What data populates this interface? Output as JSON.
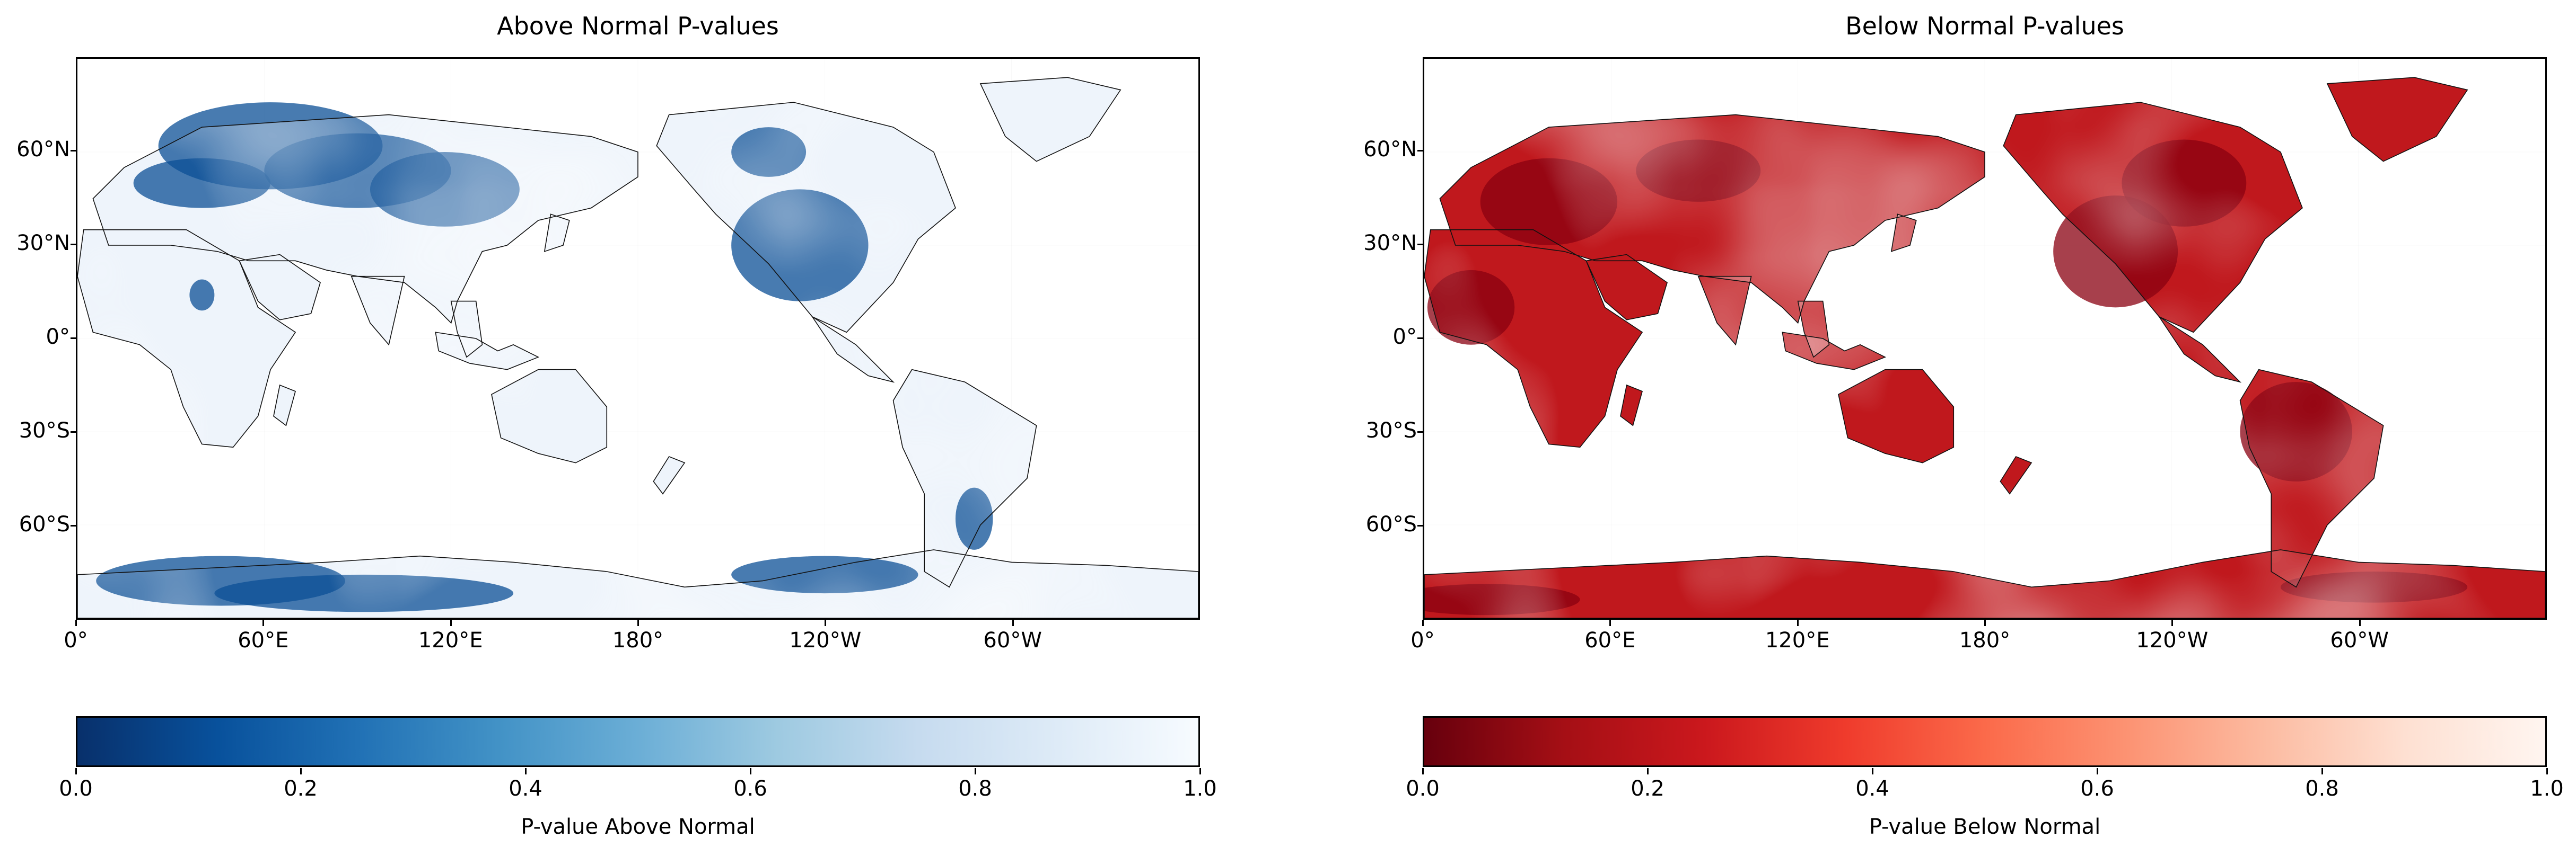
{
  "panels": [
    {
      "title": "Above Normal P-values",
      "colorbar_label": "P-value Above Normal",
      "colormap": "Blues_r",
      "colormap_stops": [
        "#08306b",
        "#08519c",
        "#2171b5",
        "#4292c6",
        "#6baed6",
        "#9ecae1",
        "#c6dbef",
        "#deebf7",
        "#f7fbff"
      ],
      "land_color": "#eef4fb",
      "hotspot_color": "#0b4f96"
    },
    {
      "title": "Below Normal P-values",
      "colorbar_label": "P-value Below Normal",
      "colormap": "Reds_r",
      "colormap_stops": [
        "#67000d",
        "#a50f15",
        "#cb181d",
        "#ef3b2c",
        "#fb6a4a",
        "#fc9272",
        "#fcbba1",
        "#fee0d2",
        "#fff5f0"
      ],
      "land_color": "#c0181d",
      "hotspot_color": "#8a0010"
    }
  ],
  "map": {
    "projection": "PlateCarree, central_longitude=180",
    "lon_labels": [
      "0°",
      "60°E",
      "120°E",
      "180°",
      "120°W",
      "60°W"
    ],
    "lat_labels": [
      "60°N",
      "30°N",
      "0°",
      "30°S",
      "60°S"
    ],
    "gridlines": true
  },
  "colorbar": {
    "ticks": [
      "0.0",
      "0.2",
      "0.4",
      "0.6",
      "0.8",
      "1.0"
    ],
    "range": [
      0,
      1
    ]
  }
}
